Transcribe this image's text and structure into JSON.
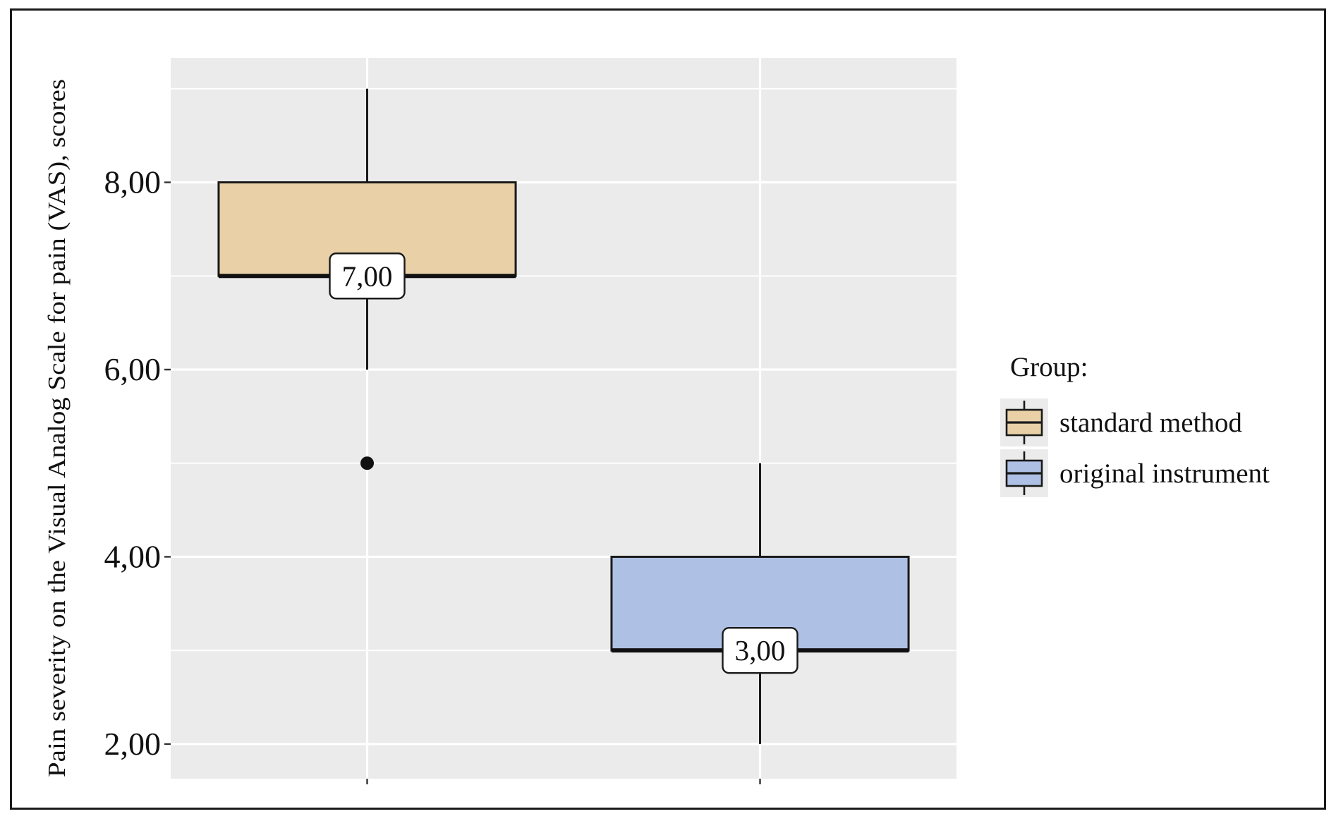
{
  "chart_data": {
    "type": "box",
    "ylabel": "Pain severity on the Visual Analog Scale for pain (VAS), scores",
    "xlabel": "",
    "ylim": [
      1.63,
      9.33
    ],
    "yticks": [
      2,
      4,
      6,
      8
    ],
    "ytick_labels": [
      "2,00",
      "4,00",
      "6,00",
      "8,00"
    ],
    "grid": true,
    "legend": {
      "title": "Group:",
      "position": "right"
    },
    "series": [
      {
        "name": "standard method",
        "color": "#e9d0a7",
        "whisker_low": 6,
        "q1": 7,
        "median": 7,
        "q3": 8,
        "whisker_high": 9,
        "outliers": [
          5
        ],
        "median_label": "7,00"
      },
      {
        "name": "original instrument",
        "color": "#aec0e3",
        "whisker_low": 2,
        "q1": 3,
        "median": 3,
        "q3": 4,
        "whisker_high": 5,
        "outliers": [],
        "median_label": "3,00"
      }
    ]
  }
}
